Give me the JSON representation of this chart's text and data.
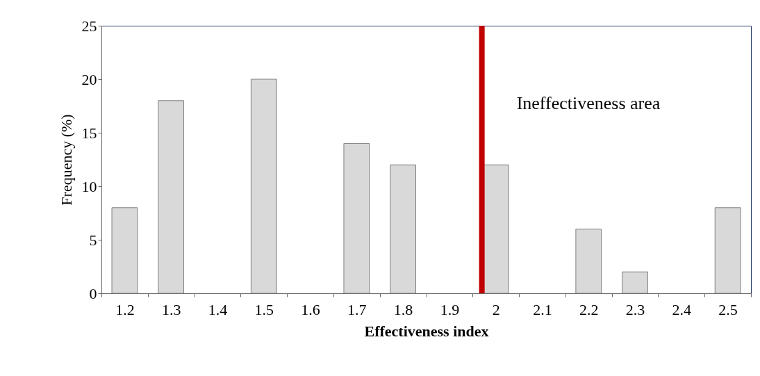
{
  "chart_data": {
    "type": "bar",
    "xlabel": "Effectiveness index",
    "ylabel": "Frequency (%)",
    "categories": [
      "1.2",
      "1.3",
      "1.4",
      "1.5",
      "1.6",
      "1.7",
      "1.8",
      "1.9",
      "2",
      "2.1",
      "2.2",
      "2.3",
      "2.4",
      "2.5"
    ],
    "values": [
      8,
      18,
      0,
      20,
      0,
      14,
      12,
      0,
      12,
      0,
      6,
      2,
      0,
      8
    ],
    "color": "#d9d9d9",
    "ylim": [
      0,
      25
    ],
    "yticks": [
      0,
      5,
      10,
      15,
      20,
      25
    ],
    "grid": false,
    "ref_lines": [
      {
        "axis": "x",
        "value": "2",
        "label": "Ineffectiveness area",
        "color": "#c00000"
      }
    ]
  }
}
